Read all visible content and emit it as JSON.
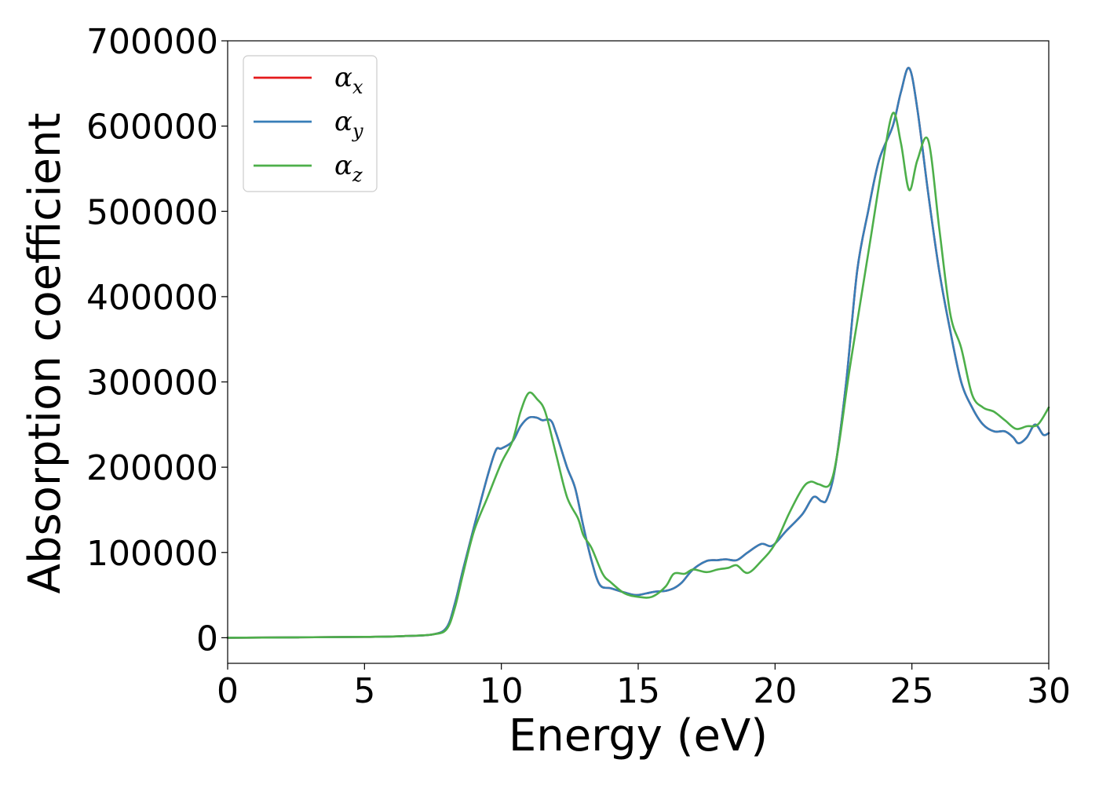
{
  "chart_data": {
    "type": "line",
    "title": "",
    "xlabel": "Energy (eV)",
    "ylabel": "Absorption coefficient",
    "xlim": [
      0,
      30
    ],
    "ylim": [
      -30000,
      700000
    ],
    "xticks": [
      0,
      5,
      10,
      15,
      20,
      25,
      30
    ],
    "yticks": [
      0,
      100000,
      200000,
      300000,
      400000,
      500000,
      600000,
      700000
    ],
    "grid": false,
    "legend": {
      "placement": "top-left",
      "entries": [
        {
          "symbol": "α",
          "sub": "x",
          "color": "#e41a1c"
        },
        {
          "symbol": "α",
          "sub": "y",
          "color": "#377eb8"
        },
        {
          "symbol": "α",
          "sub": "z",
          "color": "#4daf4a"
        }
      ]
    },
    "series": [
      {
        "color": "#e41a1c",
        "x": [
          0,
          5,
          6.5,
          7.5,
          8.0,
          8.3,
          8.6,
          9.0,
          9.5,
          9.8,
          10.0,
          10.4,
          10.7,
          11.0,
          11.3,
          11.5,
          11.8,
          12.0,
          12.4,
          12.7,
          13.0,
          13.3,
          13.6,
          14.0,
          14.5,
          14.9,
          15.3,
          15.6,
          16.0,
          16.3,
          16.6,
          17.0,
          17.5,
          17.9,
          18.2,
          18.6,
          19.0,
          19.5,
          19.9,
          20.4,
          21.0,
          21.4,
          21.7,
          21.9,
          22.2,
          22.6,
          23.0,
          23.4,
          23.8,
          24.3,
          24.6,
          24.9,
          25.2,
          25.6,
          26.0,
          26.4,
          26.8,
          27.2,
          27.6,
          28.0,
          28.4,
          28.7,
          28.9,
          29.2,
          29.5,
          29.8,
          30.0
        ],
        "y": [
          0,
          1000,
          2000,
          4000,
          12000,
          40000,
          80000,
          130000,
          190000,
          220000,
          222000,
          230000,
          248000,
          258000,
          258000,
          255000,
          255000,
          240000,
          200000,
          175000,
          130000,
          90000,
          62000,
          58000,
          53000,
          50000,
          52000,
          54000,
          55000,
          58000,
          65000,
          80000,
          90000,
          91000,
          92000,
          91000,
          100000,
          110000,
          108000,
          125000,
          145000,
          165000,
          160000,
          163000,
          200000,
          300000,
          430000,
          500000,
          560000,
          600000,
          640000,
          668000,
          620000,
          520000,
          430000,
          360000,
          300000,
          270000,
          250000,
          242000,
          242000,
          235000,
          228000,
          235000,
          250000,
          238000,
          240000
        ]
      },
      {
        "color": "#377eb8",
        "x": [
          0,
          5,
          6.5,
          7.5,
          8.0,
          8.3,
          8.6,
          9.0,
          9.5,
          9.8,
          10.0,
          10.4,
          10.7,
          11.0,
          11.3,
          11.5,
          11.8,
          12.0,
          12.4,
          12.7,
          13.0,
          13.3,
          13.6,
          14.0,
          14.5,
          14.9,
          15.3,
          15.6,
          16.0,
          16.3,
          16.6,
          17.0,
          17.5,
          17.9,
          18.2,
          18.6,
          19.0,
          19.5,
          19.9,
          20.4,
          21.0,
          21.4,
          21.7,
          21.9,
          22.2,
          22.6,
          23.0,
          23.4,
          23.8,
          24.3,
          24.6,
          24.9,
          25.2,
          25.6,
          26.0,
          26.4,
          26.8,
          27.2,
          27.6,
          28.0,
          28.4,
          28.7,
          28.9,
          29.2,
          29.5,
          29.8,
          30.0
        ],
        "y": [
          0,
          1000,
          2000,
          4000,
          12000,
          40000,
          80000,
          130000,
          190000,
          220000,
          222000,
          230000,
          248000,
          258000,
          258000,
          255000,
          255000,
          240000,
          200000,
          175000,
          130000,
          90000,
          62000,
          58000,
          53000,
          50000,
          52000,
          54000,
          55000,
          58000,
          65000,
          80000,
          90000,
          91000,
          92000,
          91000,
          100000,
          110000,
          108000,
          125000,
          145000,
          165000,
          160000,
          163000,
          200000,
          300000,
          430000,
          500000,
          560000,
          600000,
          640000,
          668000,
          620000,
          520000,
          430000,
          360000,
          300000,
          270000,
          250000,
          242000,
          242000,
          235000,
          228000,
          235000,
          250000,
          238000,
          240000
        ]
      },
      {
        "color": "#4daf4a",
        "x": [
          0,
          5,
          6.5,
          7.5,
          8.0,
          8.3,
          8.6,
          9.0,
          9.5,
          10.0,
          10.4,
          10.7,
          11.0,
          11.3,
          11.6,
          12.0,
          12.4,
          12.8,
          13.0,
          13.3,
          13.7,
          14.0,
          14.5,
          15.0,
          15.5,
          16.0,
          16.3,
          16.7,
          17.0,
          17.5,
          17.9,
          18.3,
          18.6,
          19.0,
          19.5,
          20.0,
          20.5,
          21.0,
          21.3,
          21.6,
          22.0,
          22.3,
          22.7,
          23.1,
          23.5,
          23.9,
          24.3,
          24.6,
          24.9,
          25.2,
          25.6,
          26.0,
          26.4,
          26.8,
          27.2,
          27.6,
          28.0,
          28.4,
          28.8,
          29.2,
          29.6,
          30.0
        ],
        "y": [
          0,
          1000,
          2000,
          4000,
          10000,
          35000,
          75000,
          125000,
          165000,
          205000,
          230000,
          265000,
          287000,
          280000,
          265000,
          215000,
          165000,
          140000,
          120000,
          105000,
          75000,
          65000,
          52000,
          48000,
          48000,
          60000,
          75000,
          75000,
          80000,
          77000,
          80000,
          82000,
          85000,
          76000,
          90000,
          110000,
          145000,
          175000,
          183000,
          180000,
          180000,
          220000,
          310000,
          390000,
          470000,
          550000,
          615000,
          580000,
          525000,
          560000,
          583000,
          480000,
          380000,
          340000,
          285000,
          270000,
          265000,
          255000,
          245000,
          248000,
          250000,
          270000
        ]
      }
    ]
  }
}
